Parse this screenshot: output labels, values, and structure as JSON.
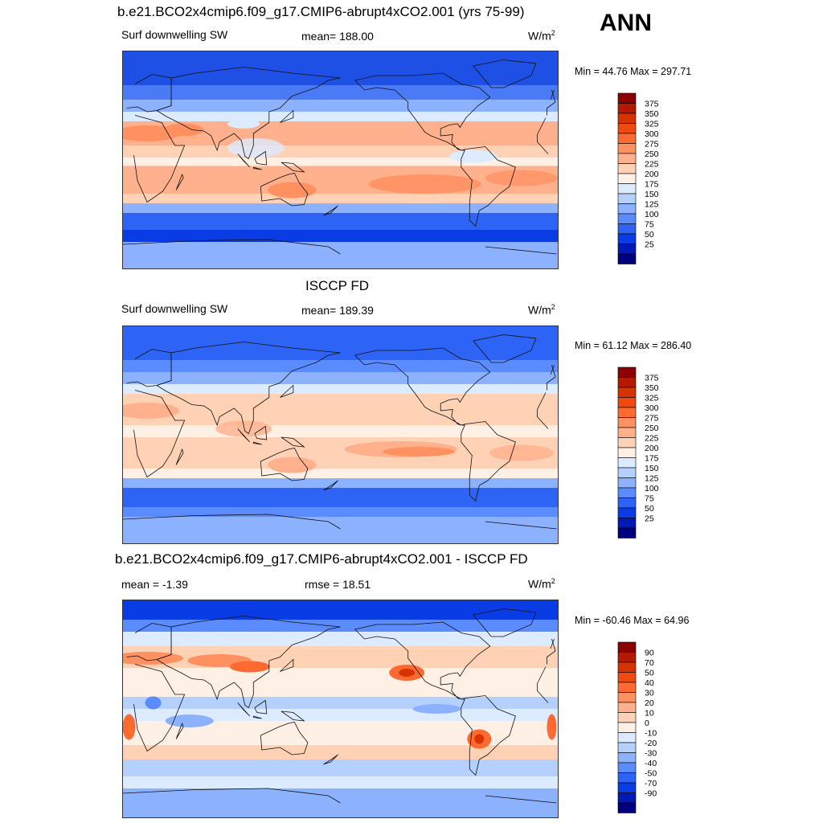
{
  "header": {
    "season": "ANN"
  },
  "panels": [
    {
      "title": "b.e21.BCO2x4cmip6.f09_g17.CMIP6-abrupt4xCO2.001 (yrs 75-99)",
      "left": "Surf downwelling SW",
      "center": "mean= 188.00",
      "units_base": "W/m",
      "units_exp": "2",
      "minmax": "Min =  44.76 Max = 297.71",
      "field": "model"
    },
    {
      "title": "ISCCP FD",
      "left": "Surf downwelling SW",
      "center": "mean= 189.39",
      "units_base": "W/m",
      "units_exp": "2",
      "minmax": "Min =  61.12 Max = 286.40",
      "field": "obs"
    },
    {
      "title": "b.e21.BCO2x4cmip6.f09_g17.CMIP6-abrupt4xCO2.001 - ISCCP FD",
      "left": "mean =  -1.39",
      "center": "rmse =  18.51",
      "units_base": "W/m",
      "units_exp": "2",
      "minmax": "Min = -60.46 Max =  64.96",
      "field": "diff"
    }
  ],
  "colorbars": {
    "abs": {
      "labels": [
        "375",
        "350",
        "325",
        "300",
        "275",
        "250",
        "225",
        "200",
        "175",
        "150",
        "125",
        "100",
        "75",
        "50",
        "25"
      ],
      "colors": [
        "#8b0000",
        "#b51a00",
        "#d63300",
        "#f04a10",
        "#ff6a30",
        "#ff9060",
        "#ffb08c",
        "#ffd2b6",
        "#fff0e6",
        "#dcebff",
        "#b4d0ff",
        "#8cb2ff",
        "#5a8cff",
        "#2d64f5",
        "#0a3ce6",
        "#0019b4",
        "#00007e"
      ]
    },
    "diff": {
      "labels": [
        "90",
        "70",
        "50",
        "40",
        "30",
        "20",
        "10",
        "0",
        "-10",
        "-20",
        "-30",
        "-40",
        "-50",
        "-70",
        "-90"
      ],
      "colors": [
        "#8b0000",
        "#b51a00",
        "#d63300",
        "#f04a10",
        "#ff6a30",
        "#ff9060",
        "#ffb08c",
        "#ffd2b6",
        "#fff0e6",
        "#dcebff",
        "#b4d0ff",
        "#8cb2ff",
        "#5a8cff",
        "#2d64f5",
        "#0a3ce6",
        "#0019b4",
        "#00007e"
      ]
    }
  }
}
